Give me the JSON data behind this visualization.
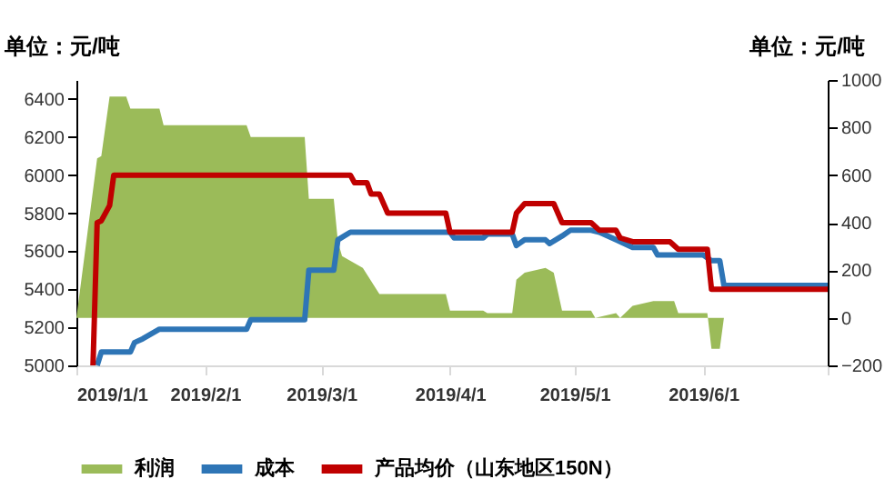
{
  "chart_data": {
    "type": "line",
    "ylabel": "单位：元/吨",
    "y2label": "单位：元/吨",
    "xlim": [
      "2019-01-01",
      "2019-07-01"
    ],
    "xticks": [
      {
        "value": "2019-01-01",
        "label": "2019/1/1"
      },
      {
        "value": "2019-02-01",
        "label": "2019/2/1"
      },
      {
        "value": "2019-03-01",
        "label": "2019/3/1"
      },
      {
        "value": "2019-04-01",
        "label": "2019/4/1"
      },
      {
        "value": "2019-05-01",
        "label": "2019/5/1"
      },
      {
        "value": "2019-06-01",
        "label": "2019/6/1"
      },
      {
        "value": "2019-07-01",
        "label": null
      }
    ],
    "ylim": [
      5000,
      6500
    ],
    "yticks": [
      5000,
      5200,
      5400,
      5600,
      5800,
      6000,
      6200,
      6400
    ],
    "y2lim": [
      -200,
      1000
    ],
    "y2ticks": [
      -200,
      0,
      200,
      400,
      600,
      800,
      1000
    ],
    "grid": false,
    "legend": "bottom",
    "line_style": "solid",
    "series": [
      {
        "name": "利润",
        "type": "area",
        "axis": "y2",
        "color": "#9bbb59",
        "x": [
          "2019-01-01",
          "2019-01-06",
          "2019-01-07",
          "2019-01-09",
          "2019-01-13",
          "2019-01-14",
          "2019-01-21",
          "2019-01-22",
          "2019-02-11",
          "2019-02-12",
          "2019-02-25",
          "2019-02-26",
          "2019-03-04",
          "2019-03-05",
          "2019-03-06",
          "2019-03-11",
          "2019-03-15",
          "2019-03-31",
          "2019-04-01",
          "2019-04-09",
          "2019-04-10",
          "2019-04-16",
          "2019-04-17",
          "2019-04-19",
          "2019-04-24",
          "2019-04-26",
          "2019-04-28",
          "2019-05-05",
          "2019-05-06",
          "2019-05-11",
          "2019-05-12",
          "2019-05-15",
          "2019-05-20",
          "2019-05-25",
          "2019-05-26",
          "2019-06-02",
          "2019-06-03",
          "2019-06-05",
          "2019-06-06",
          "2019-07-01"
        ],
        "values": [
          0,
          670,
          680,
          930,
          930,
          880,
          880,
          810,
          810,
          760,
          760,
          500,
          500,
          320,
          260,
          210,
          100,
          100,
          30,
          30,
          20,
          20,
          160,
          190,
          210,
          190,
          30,
          30,
          0,
          20,
          0,
          50,
          70,
          70,
          20,
          20,
          -130,
          -130,
          0,
          0
        ]
      },
      {
        "name": "成本",
        "type": "line",
        "axis": "y",
        "color": "#2e75b6",
        "x": [
          "2019-01-06",
          "2019-01-07",
          "2019-01-14",
          "2019-01-15",
          "2019-01-17",
          "2019-01-21",
          "2019-02-11",
          "2019-02-12",
          "2019-02-25",
          "2019-02-26",
          "2019-03-04",
          "2019-03-05",
          "2019-03-08",
          "2019-03-14",
          "2019-04-01",
          "2019-04-02",
          "2019-04-09",
          "2019-04-10",
          "2019-04-16",
          "2019-04-17",
          "2019-04-19",
          "2019-04-24",
          "2019-04-25",
          "2019-04-28",
          "2019-04-30",
          "2019-05-05",
          "2019-05-07",
          "2019-05-11",
          "2019-05-15",
          "2019-05-20",
          "2019-05-21",
          "2019-06-01",
          "2019-06-03",
          "2019-06-05",
          "2019-06-06",
          "2019-07-01"
        ],
        "values": [
          5000,
          5070,
          5070,
          5120,
          5140,
          5190,
          5190,
          5240,
          5240,
          5500,
          5500,
          5660,
          5700,
          5700,
          5700,
          5670,
          5670,
          5690,
          5690,
          5630,
          5660,
          5660,
          5640,
          5680,
          5710,
          5710,
          5700,
          5660,
          5620,
          5620,
          5580,
          5580,
          5550,
          5550,
          5420,
          5420
        ]
      },
      {
        "name": "产品均价（山东地区150N）",
        "type": "line",
        "axis": "y",
        "color": "#c00000",
        "x": [
          "2019-01-05",
          "2019-01-06",
          "2019-01-07",
          "2019-01-09",
          "2019-01-10",
          "2019-03-08",
          "2019-03-09",
          "2019-03-12",
          "2019-03-13",
          "2019-03-15",
          "2019-03-17",
          "2019-03-31",
          "2019-04-01",
          "2019-04-16",
          "2019-04-17",
          "2019-04-19",
          "2019-04-26",
          "2019-04-28",
          "2019-05-05",
          "2019-05-07",
          "2019-05-11",
          "2019-05-12",
          "2019-05-15",
          "2019-05-24",
          "2019-05-26",
          "2019-06-02",
          "2019-06-03",
          "2019-07-01"
        ],
        "values": [
          5000,
          5750,
          5760,
          5840,
          6000,
          6000,
          5960,
          5960,
          5900,
          5900,
          5800,
          5800,
          5700,
          5700,
          5800,
          5850,
          5850,
          5750,
          5750,
          5710,
          5710,
          5670,
          5650,
          5650,
          5610,
          5610,
          5400,
          5400
        ]
      }
    ]
  }
}
